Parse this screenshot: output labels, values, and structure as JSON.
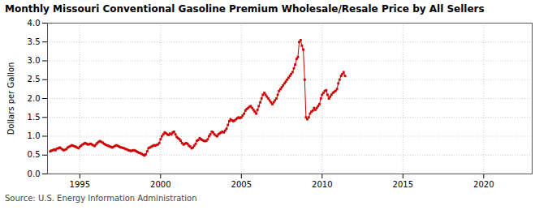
{
  "chart_data": {
    "type": "line",
    "title": "Monthly Missouri Conventional Gasoline Premium Wholesale/Resale Price by All Sellers",
    "ylabel": "Dollars per Gallon",
    "source": "Source: U.S. Energy Information Administration",
    "color": "#cc0000",
    "marker": "square",
    "line_style": "solid",
    "grid": true,
    "xlim": [
      1993.0,
      2023.0
    ],
    "ylim": [
      0.0,
      4.0
    ],
    "xticks": [
      1995,
      2000,
      2005,
      2010,
      2015,
      2020
    ],
    "yticks": [
      {
        "value": 0.0,
        "label": "0.0"
      },
      0.5,
      {
        "value": 1.0,
        "label": "1.0"
      },
      1.5,
      {
        "value": 2.0,
        "label": "2.0"
      },
      2.5,
      {
        "value": 3.0,
        "label": "3.0"
      },
      3.5,
      {
        "value": 4.0,
        "label": "4.0"
      }
    ],
    "x": [
      1993.17,
      1993.25,
      1993.33,
      1993.42,
      1993.5,
      1993.58,
      1993.67,
      1993.75,
      1993.83,
      1993.92,
      1994.0,
      1994.08,
      1994.17,
      1994.25,
      1994.33,
      1994.42,
      1994.5,
      1994.58,
      1994.67,
      1994.75,
      1994.83,
      1994.92,
      1995.0,
      1995.08,
      1995.17,
      1995.25,
      1995.33,
      1995.42,
      1995.5,
      1995.58,
      1995.67,
      1995.75,
      1995.83,
      1995.92,
      1996.0,
      1996.08,
      1996.17,
      1996.25,
      1996.33,
      1996.42,
      1996.5,
      1996.58,
      1996.67,
      1996.75,
      1996.83,
      1996.92,
      1997.0,
      1997.08,
      1997.17,
      1997.25,
      1997.33,
      1997.42,
      1997.5,
      1997.58,
      1997.67,
      1997.75,
      1997.83,
      1997.92,
      1998.0,
      1998.08,
      1998.17,
      1998.25,
      1998.33,
      1998.42,
      1998.5,
      1998.58,
      1998.67,
      1998.75,
      1998.83,
      1998.92,
      1999.0,
      1999.08,
      1999.17,
      1999.25,
      1999.33,
      1999.42,
      1999.5,
      1999.58,
      1999.67,
      1999.75,
      1999.83,
      1999.92,
      2000.0,
      2000.08,
      2000.17,
      2000.25,
      2000.33,
      2000.42,
      2000.5,
      2000.58,
      2000.67,
      2000.75,
      2000.83,
      2000.92,
      2001.0,
      2001.08,
      2001.17,
      2001.25,
      2001.33,
      2001.42,
      2001.5,
      2001.58,
      2001.67,
      2001.75,
      2001.83,
      2001.92,
      2002.0,
      2002.08,
      2002.17,
      2002.25,
      2002.33,
      2002.42,
      2002.5,
      2002.58,
      2002.67,
      2002.75,
      2002.83,
      2002.92,
      2003.0,
      2003.08,
      2003.17,
      2003.25,
      2003.33,
      2003.42,
      2003.5,
      2003.58,
      2003.67,
      2003.75,
      2003.83,
      2003.92,
      2004.0,
      2004.08,
      2004.17,
      2004.25,
      2004.33,
      2004.42,
      2004.5,
      2004.58,
      2004.67,
      2004.75,
      2004.83,
      2004.92,
      2005.0,
      2005.08,
      2005.17,
      2005.25,
      2005.33,
      2005.42,
      2005.5,
      2005.58,
      2005.67,
      2005.75,
      2005.83,
      2005.92,
      2006.0,
      2006.08,
      2006.17,
      2006.25,
      2006.33,
      2006.42,
      2006.5,
      2006.58,
      2006.67,
      2006.75,
      2006.83,
      2006.92,
      2007.0,
      2007.08,
      2007.17,
      2007.25,
      2007.33,
      2007.42,
      2007.5,
      2007.58,
      2007.67,
      2007.75,
      2007.83,
      2007.92,
      2008.0,
      2008.08,
      2008.17,
      2008.25,
      2008.33,
      2008.42,
      2008.5,
      2008.58,
      2008.67,
      2008.75,
      2008.83,
      2008.92,
      2009.0,
      2009.08,
      2009.17,
      2009.25,
      2009.33,
      2009.42,
      2009.5,
      2009.58,
      2009.67,
      2009.75,
      2009.83,
      2009.92,
      2010.0,
      2010.08,
      2010.17,
      2010.25,
      2010.33,
      2010.42,
      2010.5,
      2010.58,
      2010.67,
      2010.75,
      2010.83,
      2010.92,
      2011.0,
      2011.08,
      2011.17,
      2011.25,
      2011.33,
      2011.42
    ],
    "values": [
      0.6,
      0.62,
      0.63,
      0.65,
      0.63,
      0.67,
      0.68,
      0.7,
      0.68,
      0.65,
      0.63,
      0.64,
      0.66,
      0.7,
      0.72,
      0.74,
      0.76,
      0.75,
      0.73,
      0.72,
      0.7,
      0.68,
      0.72,
      0.75,
      0.78,
      0.8,
      0.82,
      0.8,
      0.78,
      0.79,
      0.8,
      0.78,
      0.76,
      0.74,
      0.78,
      0.82,
      0.85,
      0.87,
      0.85,
      0.83,
      0.8,
      0.78,
      0.76,
      0.75,
      0.73,
      0.72,
      0.7,
      0.72,
      0.74,
      0.76,
      0.75,
      0.73,
      0.71,
      0.7,
      0.69,
      0.68,
      0.66,
      0.65,
      0.63,
      0.62,
      0.61,
      0.62,
      0.63,
      0.62,
      0.6,
      0.58,
      0.56,
      0.55,
      0.53,
      0.51,
      0.49,
      0.52,
      0.6,
      0.68,
      0.7,
      0.72,
      0.74,
      0.76,
      0.75,
      0.77,
      0.78,
      0.82,
      0.92,
      1.0,
      1.05,
      1.1,
      1.08,
      1.05,
      1.03,
      1.07,
      1.05,
      1.1,
      1.12,
      1.05,
      0.98,
      0.95,
      0.92,
      0.88,
      0.82,
      0.78,
      0.8,
      0.82,
      0.8,
      0.75,
      0.73,
      0.68,
      0.7,
      0.75,
      0.8,
      0.88,
      0.9,
      0.95,
      0.92,
      0.9,
      0.88,
      0.87,
      0.88,
      0.92,
      1.0,
      1.05,
      1.12,
      1.1,
      1.05,
      1.02,
      1.0,
      1.05,
      1.08,
      1.1,
      1.12,
      1.1,
      1.15,
      1.2,
      1.3,
      1.4,
      1.45,
      1.42,
      1.4,
      1.42,
      1.45,
      1.48,
      1.5,
      1.48,
      1.5,
      1.55,
      1.6,
      1.68,
      1.72,
      1.75,
      1.78,
      1.8,
      1.75,
      1.7,
      1.65,
      1.6,
      1.7,
      1.8,
      1.9,
      2.0,
      2.1,
      2.15,
      2.1,
      2.05,
      2.0,
      1.95,
      1.9,
      1.85,
      1.9,
      1.95,
      2.0,
      2.1,
      2.2,
      2.25,
      2.3,
      2.35,
      2.4,
      2.45,
      2.5,
      2.55,
      2.6,
      2.65,
      2.7,
      2.8,
      2.9,
      3.05,
      3.1,
      3.5,
      3.55,
      3.4,
      3.3,
      2.5,
      1.5,
      1.45,
      1.5,
      1.6,
      1.65,
      1.68,
      1.75,
      1.7,
      1.75,
      1.8,
      1.85,
      2.0,
      2.1,
      2.15,
      2.2,
      2.22,
      2.1,
      2.0,
      2.05,
      2.1,
      2.15,
      2.18,
      2.2,
      2.25,
      2.4,
      2.5,
      2.6,
      2.65,
      2.7,
      2.6
    ]
  }
}
